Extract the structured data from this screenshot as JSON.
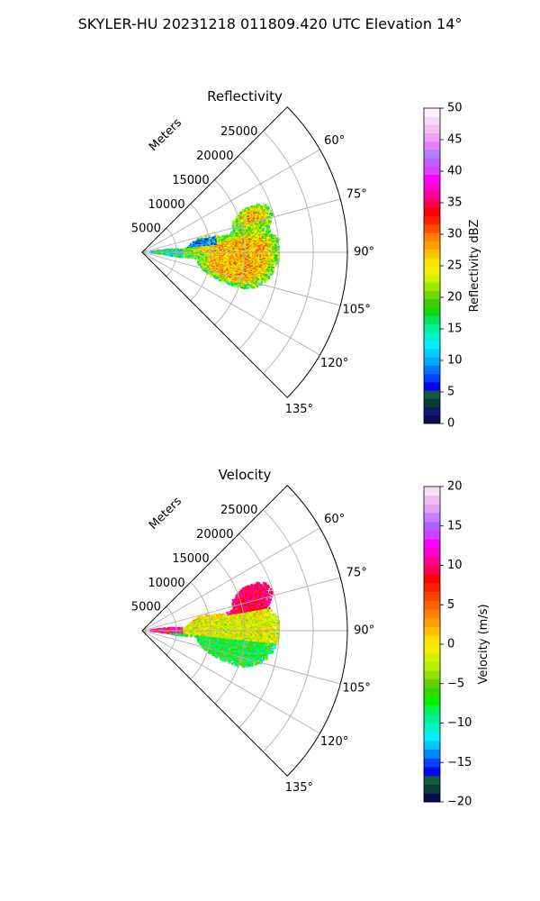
{
  "figure": {
    "suptitle": "SKYLER-HU  20231218  011809.420 UTC Elevation 14°"
  },
  "chart_data": [
    {
      "type": "polar-sector",
      "title": "Reflectivity",
      "radial_axis_label": "Meters",
      "radial_ticks": [
        "5000",
        "10000",
        "15000",
        "20000",
        "25000"
      ],
      "radial_range": [
        0,
        30000
      ],
      "azimuth_range_deg": [
        45,
        135
      ],
      "azimuth_tick_labels": [
        "60°",
        "75°",
        "90°",
        "105°",
        "120°",
        "135°"
      ],
      "grid": true,
      "colorbar": {
        "label": "Reflectivity dBZ",
        "range": [
          0,
          50
        ],
        "ticks": [
          "0",
          "5",
          "10",
          "15",
          "20",
          "25",
          "30",
          "35",
          "40",
          "45",
          "50"
        ],
        "colors": [
          "#0a0a55",
          "#0d1a6e",
          "#0c3c38",
          "#115a3c",
          "#0000ff",
          "#0044ff",
          "#0077ff",
          "#00a6ff",
          "#00ccff",
          "#00f0ff",
          "#00f0c8",
          "#00f096",
          "#00e060",
          "#10d800",
          "#40cc00",
          "#70d800",
          "#a0e800",
          "#d0f000",
          "#f0f000",
          "#ffe000",
          "#ffc000",
          "#ffa000",
          "#ff8000",
          "#ff5000",
          "#ff2000",
          "#ff0000",
          "#ff0050",
          "#ff0090",
          "#ff00d0",
          "#ff00ff",
          "#e040ff",
          "#c060ff",
          "#b080ff",
          "#e080ff",
          "#f0a0f0",
          "#f0c0f0",
          "#f8d8f8",
          "#fff0ff"
        ]
      }
    },
    {
      "type": "polar-sector",
      "title": "Velocity",
      "radial_axis_label": "Meters",
      "radial_ticks": [
        "5000",
        "10000",
        "15000",
        "20000",
        "25000"
      ],
      "radial_range": [
        0,
        30000
      ],
      "azimuth_range_deg": [
        45,
        135
      ],
      "azimuth_tick_labels": [
        "60°",
        "75°",
        "90°",
        "105°",
        "120°",
        "135°"
      ],
      "grid": true,
      "colorbar": {
        "label": "Velocity (m/s)",
        "range": [
          -20,
          20
        ],
        "ticks": [
          "−20",
          "−15",
          "−10",
          "−5",
          "0",
          "5",
          "10",
          "15",
          "20"
        ],
        "colors": [
          "#0a0a55",
          "#0c3c38",
          "#115a3c",
          "#0000ff",
          "#0044ff",
          "#0088ff",
          "#00c8ff",
          "#00f0ff",
          "#00f0c8",
          "#00f096",
          "#00f060",
          "#00f000",
          "#30d800",
          "#60d000",
          "#90e000",
          "#b0f000",
          "#d0f000",
          "#f0f000",
          "#ffe000",
          "#ffc000",
          "#ffa000",
          "#ff8000",
          "#ff6000",
          "#ff4000",
          "#ff2000",
          "#ff0000",
          "#ff0050",
          "#ff0090",
          "#ff00d0",
          "#ff00ff",
          "#d040ff",
          "#b060ff",
          "#c080ff",
          "#e0a0ff",
          "#f0c0f0",
          "#f8e0f8"
        ]
      }
    }
  ]
}
